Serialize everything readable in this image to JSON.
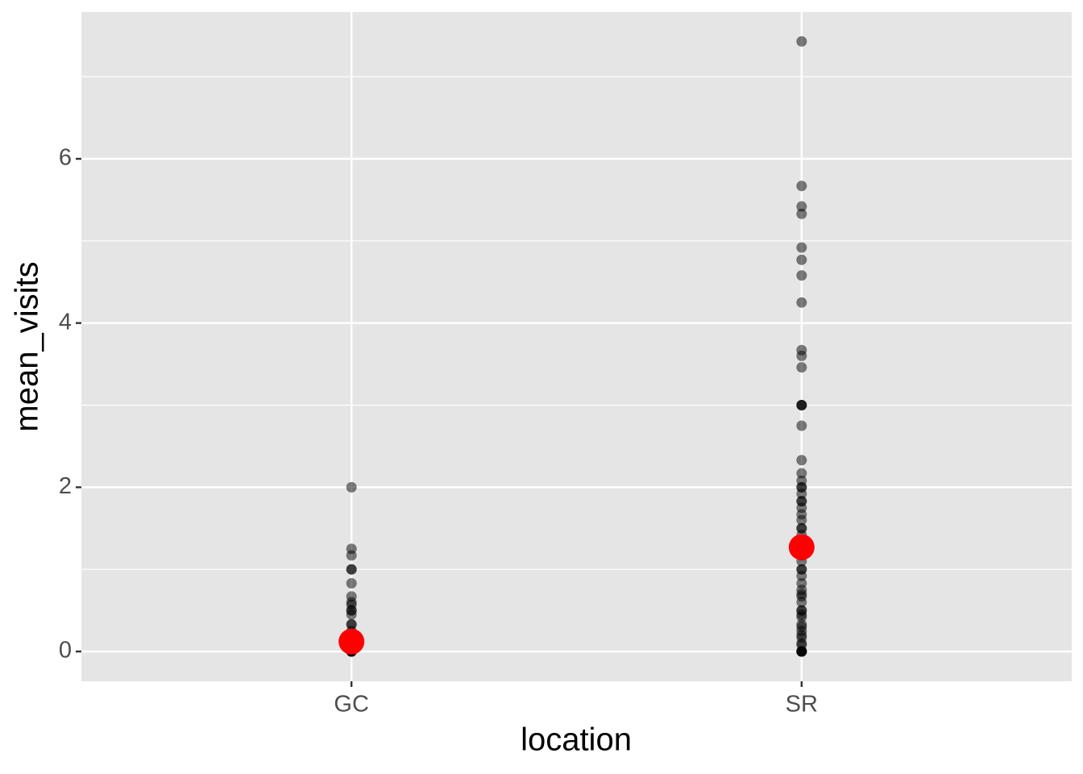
{
  "chart_data": {
    "type": "strip",
    "x_label": "location",
    "y_label": "mean_visits",
    "categories": [
      "GC",
      "SR"
    ],
    "series": [
      {
        "color": "#000000",
        "alpha": 0.5,
        "values": [
          [
            2.0,
            1.25,
            1.17,
            1.0,
            1.0,
            0.83,
            0.67,
            0.6,
            0.57,
            0.5,
            0.5,
            0.45,
            0.33,
            0.33,
            0.25,
            0.2,
            0.17,
            0.1,
            0.08,
            0.05,
            0,
            0,
            0,
            0,
            0,
            0
          ],
          [
            7.43,
            5.67,
            5.42,
            5.33,
            4.92,
            4.77,
            4.58,
            4.25,
            3.67,
            3.6,
            3.46,
            3.0,
            3.0,
            3.0,
            2.75,
            2.33,
            2.17,
            2.08,
            2.0,
            2.0,
            1.92,
            1.83,
            1.83,
            1.75,
            1.67,
            1.6,
            1.5,
            1.5,
            1.42,
            1.33,
            1.25,
            1.17,
            1.1,
            1.0,
            1.0,
            0.92,
            0.83,
            0.75,
            0.7,
            0.67,
            0.6,
            0.5,
            0.5,
            0.45,
            0.42,
            0.33,
            0.3,
            0.25,
            0.2,
            0.17,
            0.1,
            0.08,
            0,
            0,
            0,
            0,
            0
          ]
        ]
      },
      {
        "color": "#ff0000",
        "alpha": 1,
        "values": [
          [
            0.12
          ],
          [
            1.27
          ]
        ]
      }
    ],
    "ylim": [
      -0.363,
      7.787
    ],
    "yticks": [
      0,
      2,
      4,
      6
    ],
    "y_minor_grid": [
      1,
      3,
      5,
      7
    ],
    "grid": true
  }
}
